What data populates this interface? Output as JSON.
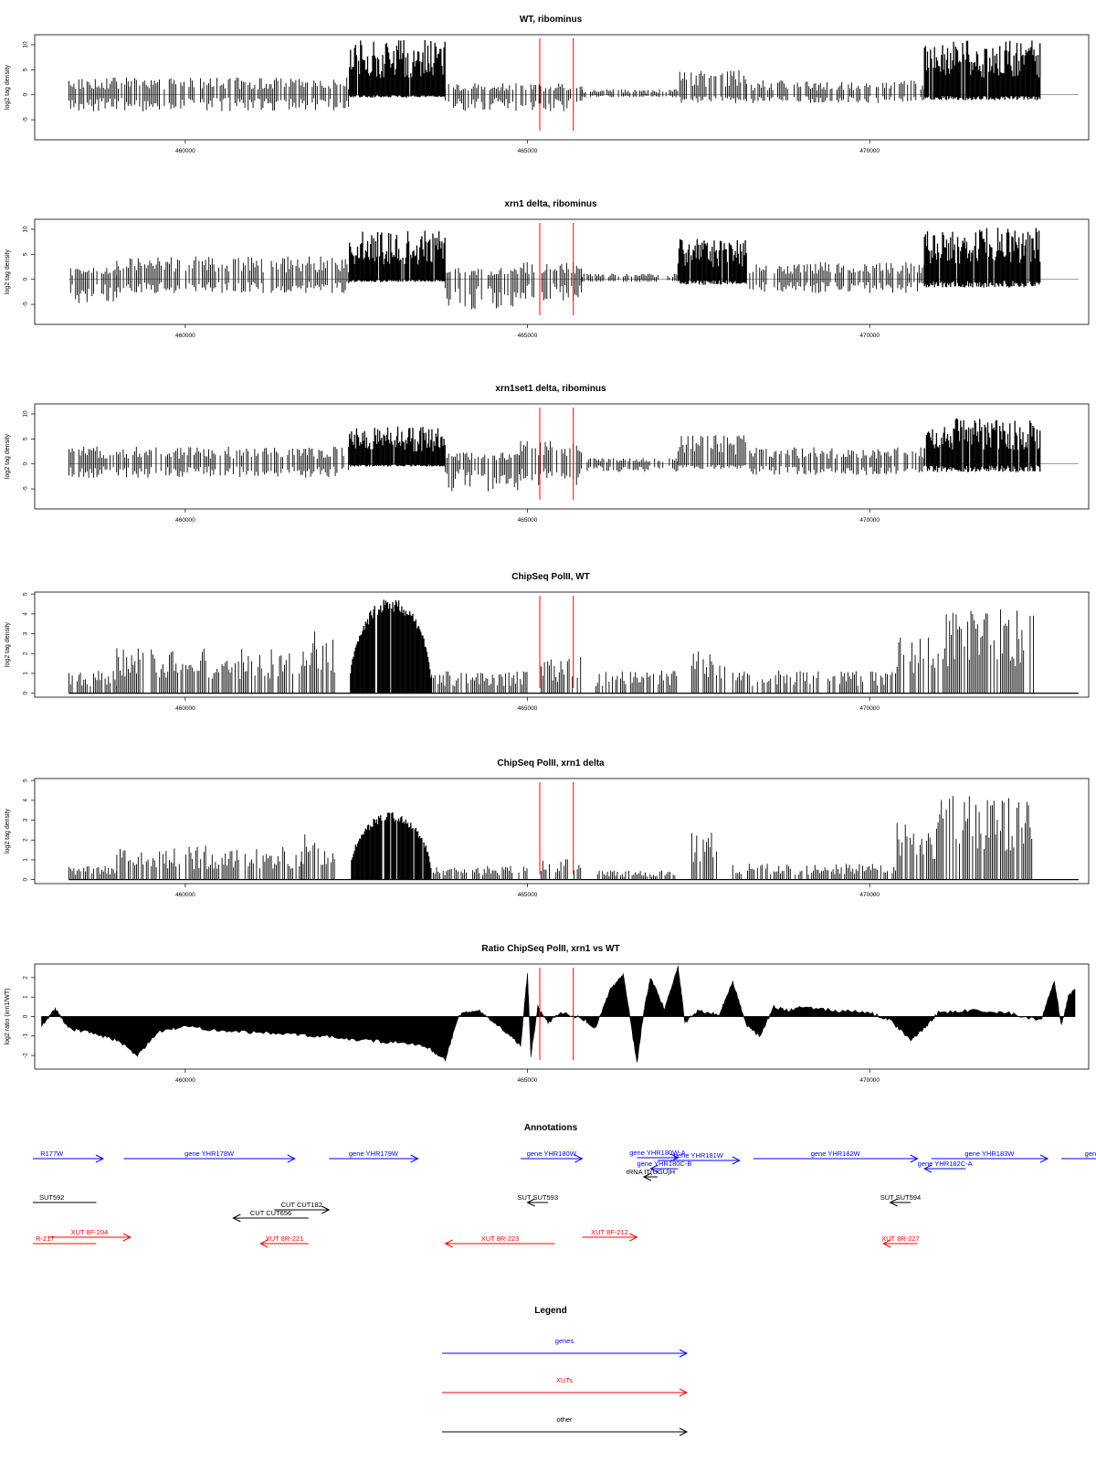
{
  "colors": {
    "gene": "#0000ff",
    "xut": "#ff0000",
    "other": "#000000",
    "marker": "#ff0000",
    "data": "#000000",
    "frame": "#000000"
  },
  "chart_data": [
    {
      "type": "bar",
      "title": "WT, ribominus",
      "ylabel": "log2 tag density",
      "xlim": [
        457800,
        473200
      ],
      "ylim": [
        -9,
        12
      ],
      "yticks": [
        -5,
        0,
        5,
        10
      ],
      "xticks": [
        460000,
        465000,
        470000
      ],
      "xtick_labels": [
        "460000",
        "465000",
        "470000"
      ],
      "marker_lines_x": [
        465180,
        465670
      ],
      "regions": [
        {
          "x0": 458300,
          "x1": 462400,
          "top": 3,
          "bot": -3
        },
        {
          "x0": 462400,
          "x1": 463800,
          "top": 9.5,
          "bot": -0.5
        },
        {
          "x0": 463800,
          "x1": 465800,
          "top": 2,
          "bot": -3
        },
        {
          "x0": 465800,
          "x1": 467200,
          "top": 1,
          "bot": -0.5
        },
        {
          "x0": 467200,
          "x1": 468200,
          "top": 4.5,
          "bot": -1.5
        },
        {
          "x0": 468200,
          "x1": 470800,
          "top": 2.5,
          "bot": -1.5
        },
        {
          "x0": 470800,
          "x1": 472500,
          "top": 9.5,
          "bot": -1
        }
      ]
    },
    {
      "type": "bar",
      "title": "xrn1 delta, ribominus",
      "ylabel": "log2 tag density",
      "xlim": [
        457800,
        473200
      ],
      "ylim": [
        -9,
        12
      ],
      "yticks": [
        -5,
        0,
        5,
        10
      ],
      "xticks": [
        460000,
        465000,
        470000
      ],
      "xtick_labels": [
        "460000",
        "465000",
        "470000"
      ],
      "marker_lines_x": [
        465180,
        465670
      ],
      "regions": [
        {
          "x0": 458300,
          "x1": 459000,
          "top": 2,
          "bot": -4.5
        },
        {
          "x0": 459000,
          "x1": 462400,
          "top": 4,
          "bot": -2.5
        },
        {
          "x0": 462400,
          "x1": 463800,
          "top": 8.5,
          "bot": -0.5
        },
        {
          "x0": 463800,
          "x1": 464900,
          "top": 2,
          "bot": -5.5
        },
        {
          "x0": 464900,
          "x1": 465800,
          "top": 3,
          "bot": -4
        },
        {
          "x0": 465800,
          "x1": 467200,
          "top": 1,
          "bot": -0.5
        },
        {
          "x0": 467200,
          "x1": 468200,
          "top": 7,
          "bot": -1
        },
        {
          "x0": 468200,
          "x1": 470800,
          "top": 3,
          "bot": -2.5
        },
        {
          "x0": 470800,
          "x1": 472500,
          "top": 9,
          "bot": -1.5
        }
      ]
    },
    {
      "type": "bar",
      "title": "xrn1set1 delta, ribominus",
      "ylabel": "log2 tag density",
      "xlim": [
        457800,
        473200
      ],
      "ylim": [
        -9,
        12
      ],
      "yticks": [
        -5,
        0,
        5,
        10
      ],
      "xticks": [
        460000,
        465000,
        470000
      ],
      "xtick_labels": [
        "460000",
        "465000",
        "470000"
      ],
      "marker_lines_x": [
        465180,
        465670
      ],
      "regions": [
        {
          "x0": 458300,
          "x1": 462400,
          "top": 3,
          "bot": -2.5
        },
        {
          "x0": 462400,
          "x1": 463800,
          "top": 6.5,
          "bot": -0.5
        },
        {
          "x0": 463800,
          "x1": 464900,
          "top": 2,
          "bot": -5
        },
        {
          "x0": 464900,
          "x1": 465800,
          "top": 4,
          "bot": -4
        },
        {
          "x0": 465800,
          "x1": 467200,
          "top": 1,
          "bot": -1.5
        },
        {
          "x0": 467200,
          "x1": 468200,
          "top": 5,
          "bot": -1
        },
        {
          "x0": 468200,
          "x1": 470800,
          "top": 3,
          "bot": -2
        },
        {
          "x0": 470800,
          "x1": 472500,
          "top": 8,
          "bot": -1.5
        }
      ]
    },
    {
      "type": "bar",
      "title": "ChipSeq PolII, WT",
      "ylabel": "log2 tag density",
      "xlim": [
        457800,
        473200
      ],
      "ylim": [
        -0.2,
        5.1
      ],
      "yticks": [
        0,
        1,
        2,
        3,
        4,
        5
      ],
      "xticks": [
        460000,
        465000,
        470000
      ],
      "xtick_labels": [
        "460000",
        "465000",
        "470000"
      ],
      "marker_lines_x": [
        465180,
        465670
      ],
      "regions": [
        {
          "x0": 458300,
          "x1": 459000,
          "top": 1,
          "bot": 0
        },
        {
          "x0": 459000,
          "x1": 461700,
          "top": 2,
          "bot": 0
        },
        {
          "x0": 461700,
          "x1": 462200,
          "top": 3,
          "bot": 0
        },
        {
          "x0": 462400,
          "x1": 463600,
          "top": 4.8,
          "bot": 0,
          "shape": "dome"
        },
        {
          "x0": 463600,
          "x1": 465000,
          "top": 1,
          "bot": 0
        },
        {
          "x0": 465200,
          "x1": 465800,
          "top": 1.6,
          "bot": 0
        },
        {
          "x0": 466000,
          "x1": 467200,
          "top": 1,
          "bot": 0
        },
        {
          "x0": 467400,
          "x1": 467900,
          "top": 2,
          "bot": 0
        },
        {
          "x0": 468000,
          "x1": 470400,
          "top": 1,
          "bot": 0
        },
        {
          "x0": 470400,
          "x1": 471000,
          "top": 2.6,
          "bot": 0
        },
        {
          "x0": 471000,
          "x1": 472400,
          "top": 3.8,
          "bot": 0
        }
      ]
    },
    {
      "type": "bar",
      "title": "ChipSeq PolII, xrn1 delta",
      "ylabel": "log2 tag density",
      "xlim": [
        457800,
        473200
      ],
      "ylim": [
        -0.2,
        5.1
      ],
      "yticks": [
        0,
        1,
        2,
        3,
        4,
        5
      ],
      "xticks": [
        460000,
        465000,
        470000
      ],
      "xtick_labels": [
        "460000",
        "465000",
        "470000"
      ],
      "marker_lines_x": [
        465180,
        465670
      ],
      "regions": [
        {
          "x0": 458300,
          "x1": 459000,
          "top": 0.6,
          "bot": 0
        },
        {
          "x0": 459000,
          "x1": 461700,
          "top": 1.5,
          "bot": 0
        },
        {
          "x0": 461700,
          "x1": 462200,
          "top": 2,
          "bot": 0
        },
        {
          "x0": 462400,
          "x1": 463600,
          "top": 3.4,
          "bot": 0,
          "shape": "dome"
        },
        {
          "x0": 463600,
          "x1": 465000,
          "top": 0.6,
          "bot": 0
        },
        {
          "x0": 465200,
          "x1": 465800,
          "top": 1,
          "bot": 0
        },
        {
          "x0": 466000,
          "x1": 467200,
          "top": 0.4,
          "bot": 0
        },
        {
          "x0": 467400,
          "x1": 467900,
          "top": 2.2,
          "bot": 0
        },
        {
          "x0": 468000,
          "x1": 470400,
          "top": 0.7,
          "bot": 0
        },
        {
          "x0": 470400,
          "x1": 471000,
          "top": 2.5,
          "bot": 0
        },
        {
          "x0": 471000,
          "x1": 472400,
          "top": 3.8,
          "bot": 0
        }
      ]
    },
    {
      "type": "area",
      "title": "Ratio ChipSeq PolII, xrn1 vs WT",
      "ylabel": "log2 ratio (xrn1/WT)",
      "xlim": [
        457800,
        473200
      ],
      "ylim": [
        -2.7,
        2.7
      ],
      "yticks": [
        -2,
        -1,
        0,
        1,
        2
      ],
      "xticks": [
        460000,
        465000,
        470000
      ],
      "xtick_labels": [
        "460000",
        "465000",
        "470000"
      ],
      "marker_lines_x": [
        465180,
        465670
      ],
      "x": [
        457900,
        458100,
        458300,
        458600,
        459000,
        459300,
        459600,
        460000,
        460500,
        461000,
        461500,
        462000,
        462500,
        463000,
        463500,
        463800,
        464000,
        464300,
        464600,
        464900,
        465000,
        465050,
        465150,
        465300,
        465500,
        465800,
        466000,
        466200,
        466400,
        466600,
        466700,
        466800,
        467000,
        467200,
        467300,
        467500,
        467800,
        468000,
        468200,
        468400,
        468600,
        468800,
        469000,
        469500,
        470000,
        470300,
        470600,
        470800,
        471000,
        471500,
        472000,
        472500,
        472700,
        472800,
        472900,
        473000
      ],
      "y": [
        -0.5,
        0.4,
        -0.6,
        -0.8,
        -1.2,
        -2.0,
        -0.8,
        -0.5,
        -0.7,
        -0.8,
        -0.9,
        -1.0,
        -1.2,
        -1.3,
        -1.5,
        -2.2,
        0.1,
        0.3,
        -0.5,
        -1.5,
        2.2,
        -2.0,
        0.5,
        -0.3,
        0.2,
        -0.1,
        -0.6,
        1.3,
        2.2,
        -2.4,
        0.3,
        2.0,
        0.4,
        2.6,
        -0.3,
        0.3,
        0.1,
        1.8,
        -0.5,
        -1.0,
        0.5,
        0.3,
        0.5,
        0.3,
        0.2,
        -0.2,
        -1.2,
        -0.6,
        0.2,
        0.3,
        0.2,
        -0.2,
        1.8,
        -0.5,
        1.0,
        1.4
      ]
    }
  ],
  "annotations": {
    "title": "Annotations",
    "xlim": [
      457800,
      473200
    ],
    "features": [
      {
        "label": "R177W",
        "x0": 457300,
        "x1": 458800,
        "dir": "right",
        "type": "gene",
        "row": 0
      },
      {
        "label": "gene YHR178W",
        "x0": 459100,
        "x1": 461600,
        "dir": "right",
        "type": "gene",
        "row": 0
      },
      {
        "label": "gene YHR179W",
        "x0": 462100,
        "x1": 463400,
        "dir": "right",
        "type": "gene",
        "row": 0
      },
      {
        "label": "gene YHR180W",
        "x0": 464900,
        "x1": 465800,
        "dir": "right",
        "type": "gene",
        "row": 0
      },
      {
        "label": "gene YHR180W-A",
        "x0": 466600,
        "x1": 467200,
        "dir": "right",
        "type": "gene",
        "row": 0,
        "dy": -1
      },
      {
        "label": "gene YHR181W",
        "x0": 466900,
        "x1": 468100,
        "dir": "right",
        "type": "gene",
        "row": 0,
        "dy": 2
      },
      {
        "label": "gene YHR180C-B",
        "x0": 466800,
        "x1": 467200,
        "dir": "left",
        "type": "gene",
        "row": 0,
        "dy": 11
      },
      {
        "label": "gene YHR182W",
        "x0": 468300,
        "x1": 470700,
        "dir": "right",
        "type": "gene",
        "row": 0
      },
      {
        "label": "gene YHR183W",
        "x0": 470900,
        "x1": 472600,
        "dir": "right",
        "type": "gene",
        "row": 0
      },
      {
        "label": "gene YHR182C-A",
        "x0": 470800,
        "x1": 471400,
        "dir": "left",
        "type": "gene",
        "row": 0,
        "dy": 11
      },
      {
        "label": "gene Y",
        "x0": 472800,
        "x1": 473800,
        "dir": "right",
        "type": "gene",
        "row": 0
      },
      {
        "label": "tRNA tT(UGU)H",
        "x0": 466700,
        "x1": 466900,
        "dir": "left",
        "type": "other",
        "row": 0,
        "dy": 20
      },
      {
        "label": "SUT592",
        "x0": 457400,
        "x1": 458700,
        "dir": "none",
        "type": "other",
        "row": 1
      },
      {
        "label": "CUT CUT182",
        "x0": 461300,
        "x1": 462100,
        "dir": "right",
        "type": "other",
        "row": 1,
        "dy": 8
      },
      {
        "label": "CUT CUT656",
        "x0": 460700,
        "x1": 461800,
        "dir": "left",
        "type": "other",
        "row": 1,
        "dy": 17
      },
      {
        "label": "SUT SUT593",
        "x0": 465000,
        "x1": 465300,
        "dir": "left",
        "type": "other",
        "row": 1
      },
      {
        "label": "SUT SUT594",
        "x0": 470300,
        "x1": 470600,
        "dir": "left",
        "type": "other",
        "row": 1
      },
      {
        "label": "R-217",
        "x0": 457200,
        "x1": 458700,
        "dir": "none",
        "type": "xut",
        "row": 2,
        "dy": 4
      },
      {
        "label": "XUT 8F-204",
        "x0": 458000,
        "x1": 459200,
        "dir": "right",
        "type": "xut",
        "row": 2,
        "dy": -3
      },
      {
        "label": "XUT 8R-221",
        "x0": 461100,
        "x1": 461800,
        "dir": "left",
        "type": "xut",
        "row": 2,
        "dy": 4
      },
      {
        "label": "XUT 8R-223",
        "x0": 463800,
        "x1": 465400,
        "dir": "left",
        "type": "xut",
        "row": 2,
        "dy": 4
      },
      {
        "label": "XUT 8F-212",
        "x0": 465800,
        "x1": 466600,
        "dir": "right",
        "type": "xut",
        "row": 2,
        "dy": -3
      },
      {
        "label": "XUT 8R-227",
        "x0": 470200,
        "x1": 470700,
        "dir": "left",
        "type": "xut",
        "row": 2,
        "dy": 4
      }
    ]
  },
  "legend": {
    "title": "Legend",
    "items": [
      {
        "label": "genes",
        "type": "gene"
      },
      {
        "label": "XUTs",
        "type": "xut"
      },
      {
        "label": "other",
        "type": "other"
      }
    ]
  }
}
